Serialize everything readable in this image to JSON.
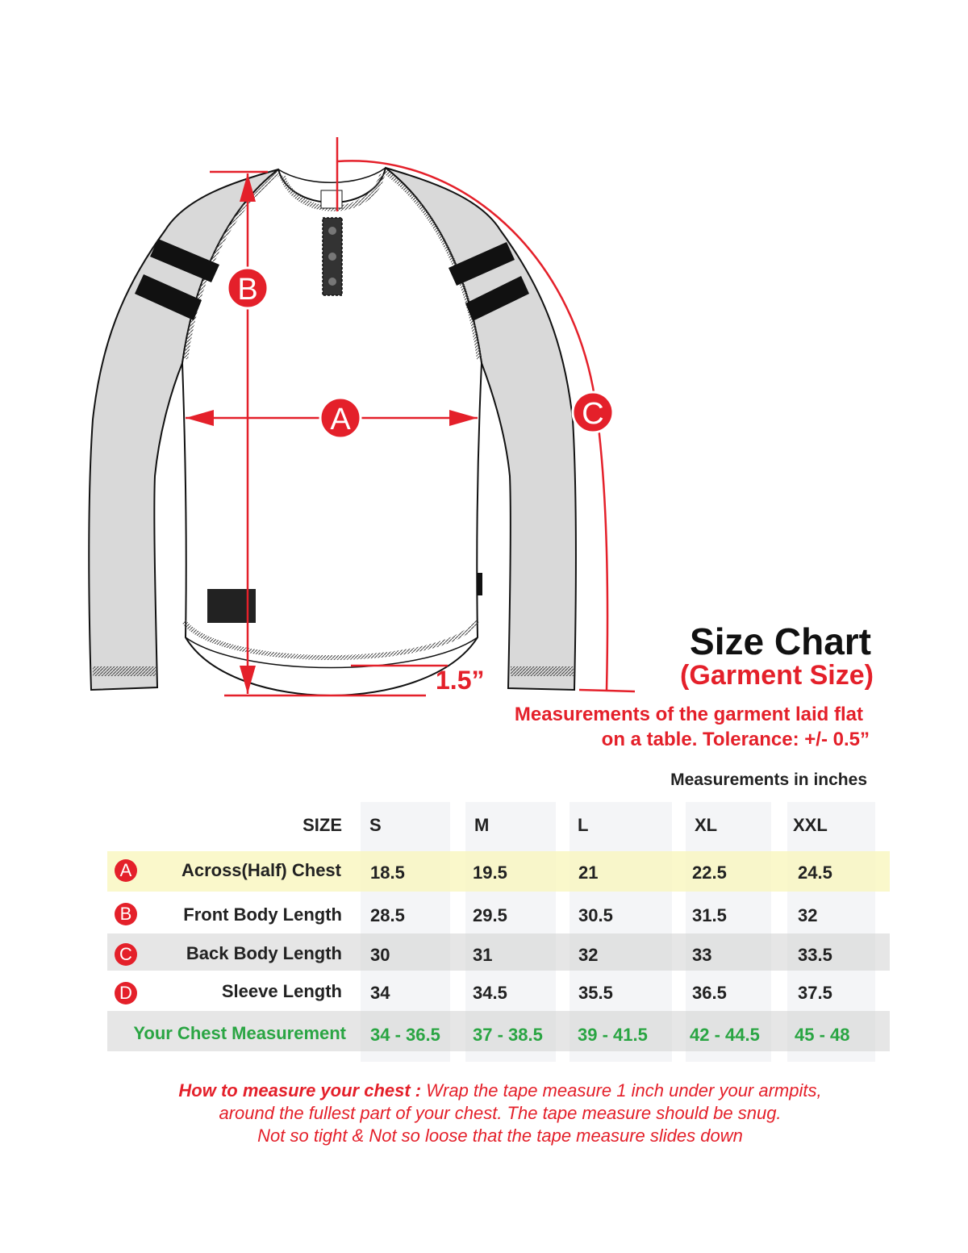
{
  "diagram": {
    "markers": {
      "a": "A",
      "b": "B",
      "c": "C"
    },
    "hem_drop": "1.5”"
  },
  "header": {
    "title": "Size Chart",
    "subtitle": "(Garment Size)",
    "note_line1": "Measurements of the garment laid flat",
    "note_line2": "on a table.  Tolerance: +/- 0.5”",
    "units": "Measurements in inches"
  },
  "colors": {
    "accent_red": "#e4202a",
    "highlight_yellow": "#f9f7cc",
    "green": "#2aa543",
    "sleeve_gray": "#d9d9d9"
  },
  "table": {
    "size_label": "SIZE",
    "sizes": [
      "S",
      "M",
      "L",
      "XL",
      "XXL"
    ],
    "rows": [
      {
        "badge": "A",
        "label": "Across(Half) Chest",
        "values": [
          "18.5",
          "19.5",
          "21",
          "22.5",
          "24.5"
        ]
      },
      {
        "badge": "B",
        "label": "Front Body Length",
        "values": [
          "28.5",
          "29.5",
          "30.5",
          "31.5",
          "32"
        ]
      },
      {
        "badge": "C",
        "label": "Back Body Length",
        "values": [
          "30",
          "31",
          "32",
          "33",
          "33.5"
        ]
      },
      {
        "badge": "D",
        "label": "Sleeve Length",
        "values": [
          "34",
          "34.5",
          "35.5",
          "36.5",
          "37.5"
        ]
      }
    ],
    "chest_row": {
      "label": "Your Chest Measurement",
      "values": [
        "34 - 36.5",
        "37 - 38.5",
        "39 - 41.5",
        "42 - 44.5",
        "45 - 48"
      ]
    }
  },
  "footer": {
    "lead": "How to measure your chest :",
    "line1": " Wrap the tape measure 1 inch under your armpits,",
    "line2": "around the fullest part of your chest. The tape measure should be snug.",
    "line3": "Not so tight & Not so loose that the tape measure slides down"
  }
}
